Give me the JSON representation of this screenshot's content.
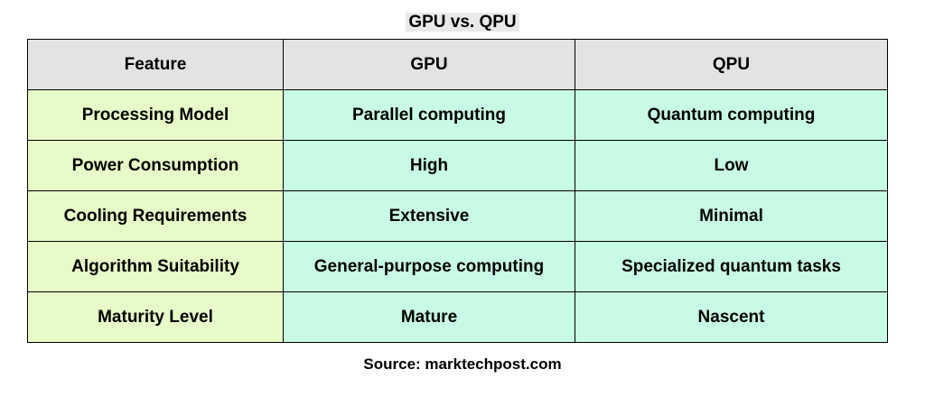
{
  "title": "GPU vs. QPU",
  "table": {
    "headers": [
      "Feature",
      "GPU",
      "QPU"
    ],
    "rows": [
      [
        "Processing Model",
        "Parallel computing",
        "Quantum computing"
      ],
      [
        "Power Consumption",
        "High",
        "Low"
      ],
      [
        "Cooling Requirements",
        "Extensive",
        "Minimal"
      ],
      [
        "Algorithm Suitability",
        "General-purpose computing",
        "Specialized quantum tasks"
      ],
      [
        "Maturity Level",
        "Mature",
        "Nascent"
      ]
    ]
  },
  "source": "Source: marktechpost.com",
  "colors": {
    "header_bg": "#e3e3e3",
    "feature_col_bg": "#e6fbc7",
    "value_col_bg": "#c8fbe3"
  }
}
